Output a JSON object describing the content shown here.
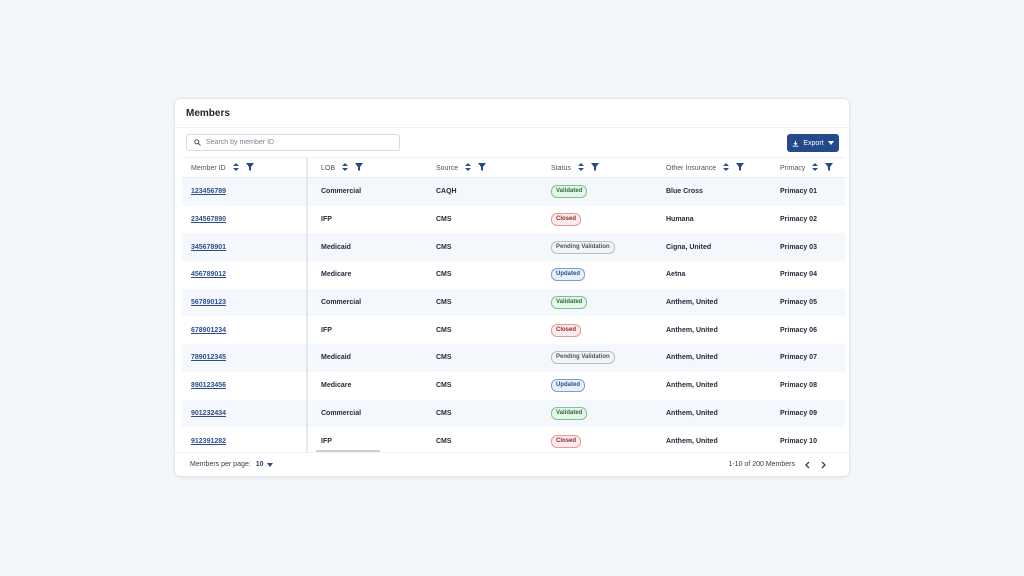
{
  "title": "Members",
  "search": {
    "placeholder": "Search by member ID",
    "value": ""
  },
  "export_label": "Export",
  "columns": [
    "Member ID",
    "LOB",
    "Source",
    "Status",
    "Other Insurance",
    "Primacy"
  ],
  "rows": [
    {
      "id": "123456789",
      "lob": "Commercial",
      "source": "CAQH",
      "status": "Validated",
      "other": "Blue Cross",
      "primacy": "Primacy 01"
    },
    {
      "id": "234567890",
      "lob": "IFP",
      "source": "CMS",
      "status": "Closed",
      "other": "Humana",
      "primacy": "Primacy 02"
    },
    {
      "id": "345678901",
      "lob": "Medicaid",
      "source": "CMS",
      "status": "Pending Validation",
      "other": "Cigna, United",
      "primacy": "Primacy 03"
    },
    {
      "id": "456789012",
      "lob": "Medicare",
      "source": "CMS",
      "status": "Updated",
      "other": "Aetna",
      "primacy": "Primacy 04"
    },
    {
      "id": "567890123",
      "lob": "Commercial",
      "source": "CMS",
      "status": "Validated",
      "other": "Anthem, United",
      "primacy": "Primacy 05"
    },
    {
      "id": "678901234",
      "lob": "IFP",
      "source": "CMS",
      "status": "Closed",
      "other": "Anthem, United",
      "primacy": "Primacy 06"
    },
    {
      "id": "789012345",
      "lob": "Medicaid",
      "source": "CMS",
      "status": "Pending Validation",
      "other": "Anthem, United",
      "primacy": "Primacy 07"
    },
    {
      "id": "890123456",
      "lob": "Medicare",
      "source": "CMS",
      "status": "Updated",
      "other": "Anthem, United",
      "primacy": "Primacy 08"
    },
    {
      "id": "901232434",
      "lob": "Commercial",
      "source": "CMS",
      "status": "Validated",
      "other": "Anthem, United",
      "primacy": "Primacy 09"
    },
    {
      "id": "912391282",
      "lob": "IFP",
      "source": "CMS",
      "status": "Closed",
      "other": "Anthem, United",
      "primacy": "Primacy 10"
    }
  ],
  "status_colors": {
    "Validated": {
      "bg": "#e6f6ea",
      "border": "#7cc48f",
      "text": "#2f6b3e"
    },
    "Closed": {
      "bg": "#fdeaea",
      "border": "#e59a9a",
      "text": "#8a2e2e"
    },
    "Pending Validation": {
      "bg": "#f1f3f5",
      "border": "#b8bec6",
      "text": "#4b5563"
    },
    "Updated": {
      "bg": "#e9f0fb",
      "border": "#7c9fd6",
      "text": "#2b4f8f"
    }
  },
  "footer": {
    "per_page_label": "Members per page:",
    "per_page_value": "10",
    "range": "1-10 of 200 Members"
  },
  "accent": "#244a8c"
}
